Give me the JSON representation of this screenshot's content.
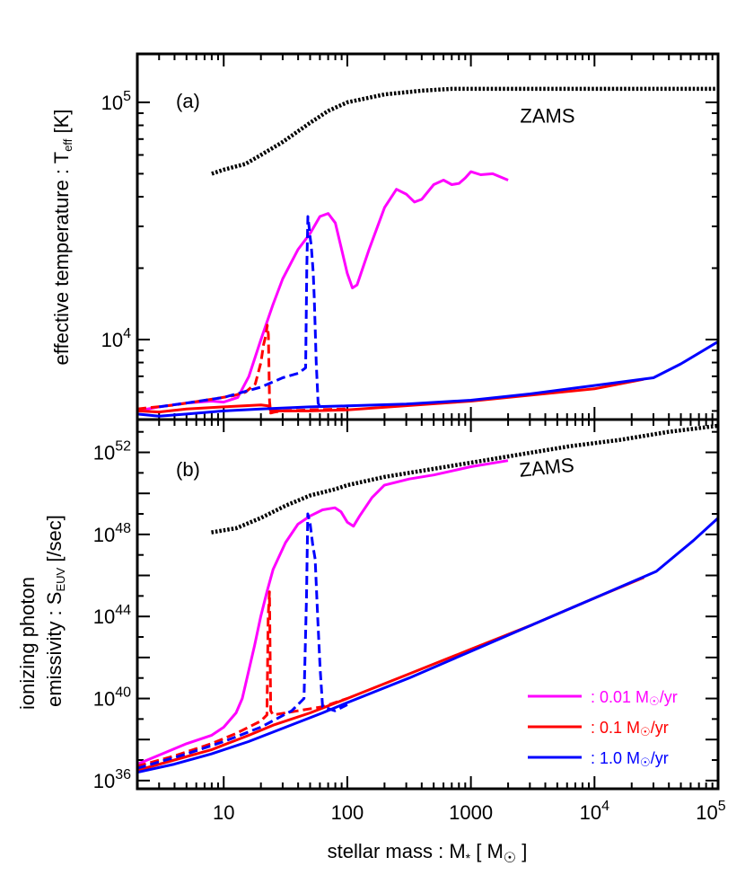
{
  "chart_data": [
    {
      "type": "line",
      "panel_label": "(a)",
      "ylabel": "effective temperature : T",
      "ylabel_sub": "eff",
      "ylabel_unit": " [K]",
      "xlog": true,
      "ylog": true,
      "xlim": [
        2,
        100000
      ],
      "ylim": [
        4600,
        160000
      ],
      "yticks": [
        {
          "value": 10000,
          "base": "10",
          "exp": "4"
        },
        {
          "value": 100000,
          "base": "10",
          "exp": "5"
        }
      ],
      "annotations": [
        {
          "text": "ZAMS",
          "x": 2500,
          "y": 82000
        }
      ],
      "series": [
        {
          "color": "#000000",
          "style": "dotted",
          "x": [
            8,
            10,
            15,
            20,
            30,
            50,
            70,
            100,
            200,
            400,
            700,
            1000,
            3000,
            10000,
            100000
          ],
          "y": [
            50000,
            52000,
            55000,
            60000,
            68000,
            82000,
            92000,
            100000,
            108000,
            112000,
            114000,
            114000,
            114000,
            114000,
            114000
          ]
        },
        {
          "color": "#ff00ff",
          "style": "solid",
          "x": [
            2,
            3,
            5,
            8,
            10,
            13,
            16,
            20,
            25,
            30,
            40,
            50,
            60,
            70,
            80,
            90,
            100,
            110,
            120,
            150,
            200,
            250,
            300,
            350,
            400,
            500,
            600,
            700,
            800,
            900,
            1000,
            1200,
            1500,
            2000
          ],
          "y": [
            5000,
            5200,
            5400,
            5500,
            5450,
            5700,
            7000,
            10000,
            14000,
            18000,
            24000,
            28000,
            33000,
            34000,
            31000,
            24000,
            19000,
            16500,
            17000,
            24000,
            36000,
            43000,
            41000,
            38000,
            39000,
            45000,
            47000,
            45000,
            45500,
            48000,
            51000,
            49500,
            50000,
            47000
          ]
        },
        {
          "color": "#ff0000",
          "style": "dashed",
          "x": [
            2,
            4,
            8,
            12,
            15,
            18,
            20,
            21,
            22,
            22.5,
            23,
            23.5,
            24,
            26,
            30,
            50,
            100
          ],
          "y": [
            5100,
            5300,
            5600,
            5800,
            6000,
            6500,
            8000,
            9500,
            10500,
            11500,
            10500,
            5500,
            4900,
            4950,
            5000,
            5050,
            5100
          ]
        },
        {
          "color": "#ff0000",
          "style": "solid",
          "x": [
            2,
            3,
            5,
            10,
            20,
            23,
            24,
            50,
            100,
            1000,
            10000,
            25000
          ],
          "y": [
            5000,
            4950,
            5100,
            5200,
            5300,
            5250,
            5000,
            5000,
            5050,
            5500,
            6200,
            6800
          ]
        },
        {
          "color": "#0000ff",
          "style": "dashed",
          "x": [
            3,
            5,
            10,
            20,
            30,
            40,
            46,
            47,
            48,
            49,
            50,
            51,
            52,
            53,
            54,
            55,
            56,
            58,
            60
          ],
          "y": [
            5200,
            5400,
            5700,
            6300,
            6900,
            7200,
            7600,
            20000,
            33000,
            30000,
            27000,
            25000,
            22000,
            19000,
            15000,
            11000,
            8000,
            5400,
            5200
          ]
        },
        {
          "color": "#0000ff",
          "style": "solid",
          "x": [
            2,
            3,
            5,
            10,
            20,
            50,
            100,
            300,
            1000,
            3000,
            10000,
            30000,
            50000,
            100000
          ],
          "y": [
            4850,
            4750,
            4850,
            5000,
            5100,
            5200,
            5250,
            5350,
            5550,
            5900,
            6400,
            6900,
            7900,
            9800
          ]
        }
      ]
    },
    {
      "type": "line",
      "panel_label": "(b)",
      "ylabel_line1": "ionizing photon",
      "ylabel_line2": "emissivity :  S",
      "ylabel_sub": "EUV",
      "ylabel_unit": " [/sec]",
      "xlabel": "stellar mass :  M",
      "xlabel_sub": "*",
      "xlabel_unit": " [ M",
      "xlabel_sun": "☉",
      "xlabel_close": "]",
      "xlog": true,
      "ylog": true,
      "xlim": [
        2,
        100000
      ],
      "ylim_exp": [
        35.6,
        53.6
      ],
      "yticks": [
        {
          "exp_value": 36,
          "base": "10",
          "exp": "36"
        },
        {
          "exp_value": 40,
          "base": "10",
          "exp": "40"
        },
        {
          "exp_value": 44,
          "base": "10",
          "exp": "44"
        },
        {
          "exp_value": 48,
          "base": "10",
          "exp": "48"
        },
        {
          "exp_value": 52,
          "base": "10",
          "exp": "52"
        }
      ],
      "xticks": [
        {
          "value": 10,
          "base": "10",
          "exp": ""
        },
        {
          "value": 100,
          "base": "100",
          "exp": ""
        },
        {
          "value": 1000,
          "base": "1000",
          "exp": ""
        },
        {
          "value": 10000,
          "base": "10",
          "exp": "4"
        },
        {
          "value": 100000,
          "base": "10",
          "exp": "5"
        }
      ],
      "annotations": [
        {
          "text": "ZAMS",
          "x": 2500,
          "y_exp": 50.8
        }
      ],
      "legend": [
        {
          "color": "#ff00ff",
          "label": ": 0.01 M",
          "sun": "☉",
          "unit": "/yr"
        },
        {
          "color": "#ff0000",
          "label": ": 0.1 M",
          "sun": "☉",
          "unit": "/yr"
        },
        {
          "color": "#0000ff",
          "label": ": 1.0 M",
          "sun": "☉",
          "unit": "/yr"
        }
      ],
      "series": [
        {
          "color": "#000000",
          "style": "dotted",
          "x_log": [
            0.9,
            1.1,
            1.3,
            1.5,
            1.7,
            1.9,
            2.0,
            2.3,
            2.6,
            3.0,
            3.4,
            3.8,
            4.2,
            4.6,
            5.0
          ],
          "y_exp": [
            48.1,
            48.3,
            48.8,
            49.4,
            49.9,
            50.2,
            50.4,
            50.8,
            51.1,
            51.5,
            51.9,
            52.3,
            52.6,
            53.0,
            53.3
          ]
        },
        {
          "color": "#ff00ff",
          "style": "solid",
          "x_log": [
            0.3,
            0.5,
            0.7,
            0.9,
            1.0,
            1.1,
            1.15,
            1.2,
            1.25,
            1.3,
            1.35,
            1.4,
            1.5,
            1.6,
            1.7,
            1.8,
            1.9,
            1.95,
            2.0,
            2.05,
            2.1,
            2.2,
            2.3,
            2.5,
            2.7,
            3.0,
            3.3
          ],
          "y_exp": [
            36.8,
            37.3,
            37.8,
            38.2,
            38.6,
            39.3,
            40.0,
            41.3,
            42.6,
            44.0,
            45.2,
            46.3,
            47.6,
            48.5,
            48.9,
            49.2,
            49.3,
            49.1,
            48.6,
            48.4,
            48.9,
            49.8,
            50.4,
            50.7,
            50.9,
            51.3,
            51.6
          ]
        },
        {
          "color": "#ff0000",
          "style": "dashed",
          "x_log": [
            0.3,
            0.6,
            0.9,
            1.1,
            1.2,
            1.3,
            1.35,
            1.36,
            1.37,
            1.38,
            1.4,
            1.6,
            1.8,
            2.0
          ],
          "y_exp": [
            36.7,
            37.2,
            37.8,
            38.3,
            38.6,
            38.9,
            39.2,
            44.0,
            45.2,
            39.4,
            39.2,
            39.4,
            39.6,
            40.0
          ]
        },
        {
          "color": "#ff0000",
          "style": "solid",
          "x_log": [
            0.3,
            0.6,
            0.9,
            1.2,
            1.4,
            1.7,
            2.0,
            2.5,
            3.0,
            3.5,
            4.0,
            4.4
          ],
          "y_exp": [
            36.5,
            37.0,
            37.5,
            38.2,
            38.7,
            39.3,
            40.0,
            41.2,
            42.4,
            43.6,
            44.9,
            45.9
          ]
        },
        {
          "color": "#0000ff",
          "style": "dashed",
          "x_log": [
            0.3,
            0.7,
            1.0,
            1.3,
            1.55,
            1.65,
            1.67,
            1.68,
            1.7,
            1.72,
            1.74,
            1.76,
            1.78,
            1.8,
            1.9,
            2.0
          ],
          "y_exp": [
            36.6,
            37.3,
            37.9,
            38.6,
            39.4,
            40.0,
            45.0,
            49.0,
            48.5,
            47.5,
            46.8,
            44.0,
            41.5,
            39.6,
            39.4,
            39.7
          ]
        },
        {
          "color": "#0000ff",
          "style": "solid",
          "x_log": [
            0.3,
            0.6,
            0.9,
            1.2,
            1.5,
            1.8,
            2.0,
            2.5,
            3.0,
            3.5,
            4.0,
            4.5,
            4.8,
            5.0
          ],
          "y_exp": [
            36.4,
            36.8,
            37.3,
            37.9,
            38.6,
            39.3,
            39.8,
            41.0,
            42.3,
            43.6,
            44.9,
            46.2,
            47.7,
            48.8
          ]
        }
      ]
    }
  ]
}
